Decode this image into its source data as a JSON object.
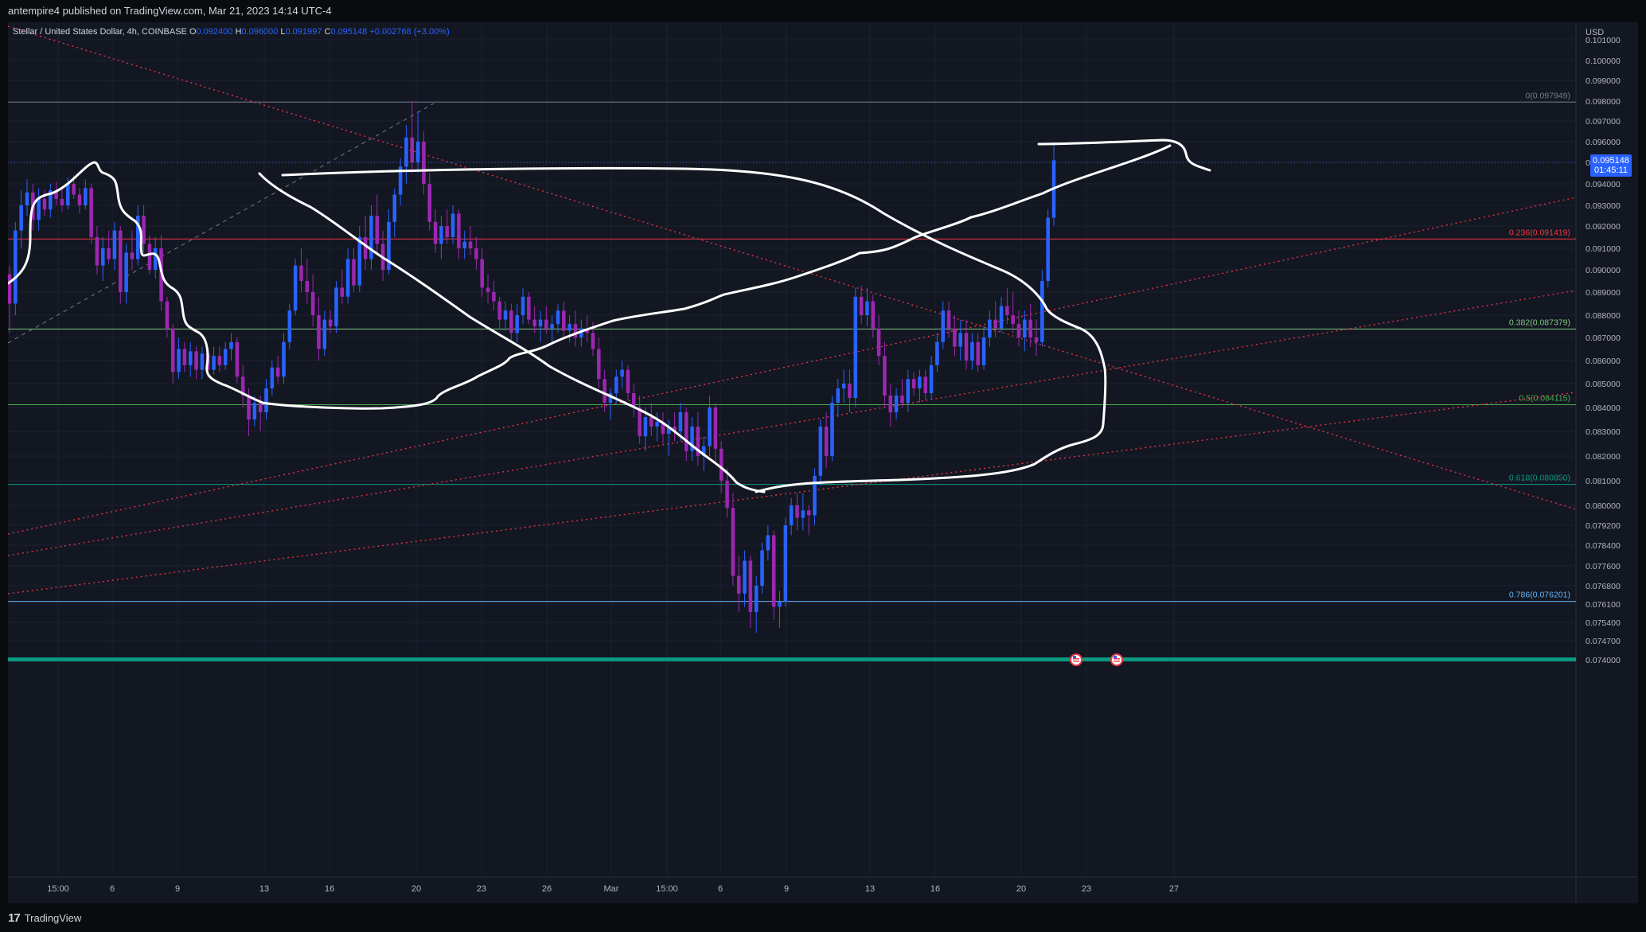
{
  "header": {
    "text": "antempire4 published on TradingView.com, Mar 21, 2023 14:14 UTC-4"
  },
  "legend": {
    "symbol": "Stellar / United States Dollar, 4h, COINBASE",
    "o_label": "O",
    "o": "0.092400",
    "h_label": "H",
    "h": "0.096000",
    "l_label": "L",
    "l": "0.091997",
    "c_label": "C",
    "c": "0.095148",
    "change": "+0.002768 (+3.00%)"
  },
  "price_tag": {
    "price": "0.095148",
    "countdown": "01:45:11"
  },
  "footer": {
    "logo_mark": "17",
    "logo_text": "TradingView"
  },
  "chart_data": {
    "type": "candlestick",
    "currency_label": "USD",
    "y_ticks": [
      "0.101000",
      "0.100000",
      "0.099000",
      "0.098000",
      "0.097000",
      "0.096000",
      "0.095000",
      "0.094000",
      "0.093000",
      "0.092000",
      "0.091000",
      "0.090000",
      "0.089000",
      "0.088000",
      "0.087000",
      "0.086000",
      "0.085000",
      "0.084000",
      "0.083000",
      "0.082000",
      "0.081000",
      "0.080000",
      "0.079200",
      "0.078400",
      "0.077600",
      "0.076800",
      "0.076100",
      "0.075400",
      "0.074700",
      "0.074000"
    ],
    "x_ticks": [
      "15:00",
      "6",
      "9",
      "13",
      "16",
      "20",
      "23",
      "26",
      "Mar",
      "15:00",
      "6",
      "9",
      "13",
      "16",
      "20",
      "23",
      "27"
    ],
    "fib_levels": [
      {
        "label": "0(0.097949)",
        "value": 0.097949,
        "color": "#787b86"
      },
      {
        "label": "0.236(0.091419)",
        "value": 0.091419,
        "color": "#f23645"
      },
      {
        "label": "0.382(0.087379)",
        "value": 0.087379,
        "color": "#81c784"
      },
      {
        "label": "0.5(0.084115)",
        "value": 0.084115,
        "color": "#4caf50"
      },
      {
        "label": "0.618(0.080850)",
        "value": 0.08085,
        "color": "#089981"
      },
      {
        "label": "0.786(0.076201)",
        "value": 0.076201,
        "color": "#64b5f6"
      }
    ],
    "baseline_value": 0.074,
    "candles": [
      [
        0.0898,
        0.0902,
        0.0872,
        0.0885
      ],
      [
        0.0885,
        0.0922,
        0.088,
        0.0918
      ],
      [
        0.0918,
        0.0937,
        0.091,
        0.093
      ],
      [
        0.093,
        0.0942,
        0.0925,
        0.0936
      ],
      [
        0.0936,
        0.094,
        0.0918,
        0.0923
      ],
      [
        0.0923,
        0.0938,
        0.0918,
        0.0933
      ],
      [
        0.0933,
        0.0937,
        0.0925,
        0.0928
      ],
      [
        0.0928,
        0.094,
        0.0924,
        0.0937
      ],
      [
        0.0937,
        0.0941,
        0.093,
        0.0933
      ],
      [
        0.0933,
        0.0938,
        0.0927,
        0.093
      ],
      [
        0.093,
        0.0943,
        0.0928,
        0.094
      ],
      [
        0.094,
        0.0944,
        0.0933,
        0.0935
      ],
      [
        0.0935,
        0.0938,
        0.0926,
        0.093
      ],
      [
        0.093,
        0.0942,
        0.0928,
        0.0938
      ],
      [
        0.0938,
        0.094,
        0.0912,
        0.0915
      ],
      [
        0.0915,
        0.092,
        0.0898,
        0.0902
      ],
      [
        0.0902,
        0.0915,
        0.0895,
        0.091
      ],
      [
        0.091,
        0.0918,
        0.0903,
        0.0905
      ],
      [
        0.0905,
        0.0922,
        0.09,
        0.0918
      ],
      [
        0.0918,
        0.092,
        0.0885,
        0.089
      ],
      [
        0.089,
        0.0912,
        0.0885,
        0.0908
      ],
      [
        0.0908,
        0.0918,
        0.09,
        0.0905
      ],
      [
        0.0905,
        0.093,
        0.0902,
        0.0925
      ],
      [
        0.0925,
        0.093,
        0.0908,
        0.0912
      ],
      [
        0.0912,
        0.0916,
        0.0898,
        0.09
      ],
      [
        0.09,
        0.0915,
        0.0896,
        0.091
      ],
      [
        0.091,
        0.0916,
        0.0882,
        0.0886
      ],
      [
        0.0886,
        0.0888,
        0.087,
        0.0874
      ],
      [
        0.0874,
        0.0876,
        0.085,
        0.0855
      ],
      [
        0.0855,
        0.087,
        0.0852,
        0.0865
      ],
      [
        0.0865,
        0.0868,
        0.0855,
        0.0858
      ],
      [
        0.0858,
        0.0868,
        0.0853,
        0.0864
      ],
      [
        0.0864,
        0.0866,
        0.0852,
        0.0856
      ],
      [
        0.0856,
        0.0866,
        0.0852,
        0.0863
      ],
      [
        0.0863,
        0.0865,
        0.0853,
        0.0856
      ],
      [
        0.0856,
        0.0866,
        0.0854,
        0.0862
      ],
      [
        0.0862,
        0.0866,
        0.0855,
        0.0858
      ],
      [
        0.0858,
        0.0868,
        0.0856,
        0.0865
      ],
      [
        0.0865,
        0.0872,
        0.086,
        0.0868
      ],
      [
        0.0868,
        0.087,
        0.085,
        0.0853
      ],
      [
        0.0853,
        0.0858,
        0.084,
        0.0845
      ],
      [
        0.0845,
        0.0848,
        0.0828,
        0.0835
      ],
      [
        0.0835,
        0.0845,
        0.0832,
        0.0842
      ],
      [
        0.0842,
        0.0845,
        0.083,
        0.0838
      ],
      [
        0.0838,
        0.0852,
        0.0835,
        0.0848
      ],
      [
        0.0848,
        0.086,
        0.0845,
        0.0857
      ],
      [
        0.0857,
        0.0862,
        0.085,
        0.0853
      ],
      [
        0.0853,
        0.0872,
        0.085,
        0.0868
      ],
      [
        0.0868,
        0.0885,
        0.0865,
        0.0882
      ],
      [
        0.0882,
        0.0905,
        0.088,
        0.0902
      ],
      [
        0.0902,
        0.091,
        0.089,
        0.0895
      ],
      [
        0.0895,
        0.0905,
        0.0885,
        0.089
      ],
      [
        0.089,
        0.0898,
        0.0875,
        0.088
      ],
      [
        0.088,
        0.0888,
        0.086,
        0.0865
      ],
      [
        0.0865,
        0.0882,
        0.0862,
        0.0878
      ],
      [
        0.0878,
        0.0882,
        0.0872,
        0.0875
      ],
      [
        0.0875,
        0.0895,
        0.0872,
        0.0892
      ],
      [
        0.0892,
        0.09,
        0.0885,
        0.0888
      ],
      [
        0.0888,
        0.091,
        0.0885,
        0.0905
      ],
      [
        0.0905,
        0.091,
        0.089,
        0.0893
      ],
      [
        0.0893,
        0.092,
        0.089,
        0.0915
      ],
      [
        0.0915,
        0.0925,
        0.09,
        0.0905
      ],
      [
        0.0905,
        0.093,
        0.09,
        0.0925
      ],
      [
        0.0925,
        0.0935,
        0.0908,
        0.0912
      ],
      [
        0.0912,
        0.0918,
        0.0895,
        0.09
      ],
      [
        0.09,
        0.0928,
        0.0898,
        0.0922
      ],
      [
        0.0922,
        0.0938,
        0.0915,
        0.0935
      ],
      [
        0.0935,
        0.0952,
        0.093,
        0.0948
      ],
      [
        0.0948,
        0.0968,
        0.094,
        0.0962
      ],
      [
        0.0962,
        0.098,
        0.0945,
        0.095
      ],
      [
        0.095,
        0.0975,
        0.0945,
        0.096
      ],
      [
        0.096,
        0.0965,
        0.0935,
        0.094
      ],
      [
        0.094,
        0.0945,
        0.0918,
        0.0922
      ],
      [
        0.0922,
        0.0928,
        0.0908,
        0.0912
      ],
      [
        0.0912,
        0.0925,
        0.0905,
        0.092
      ],
      [
        0.092,
        0.0928,
        0.0912,
        0.0915
      ],
      [
        0.0915,
        0.093,
        0.0912,
        0.0926
      ],
      [
        0.0926,
        0.0928,
        0.0905,
        0.091
      ],
      [
        0.091,
        0.0918,
        0.0905,
        0.0913
      ],
      [
        0.0913,
        0.092,
        0.0907,
        0.091
      ],
      [
        0.091,
        0.0915,
        0.09,
        0.0905
      ],
      [
        0.0905,
        0.091,
        0.0888,
        0.0892
      ],
      [
        0.0892,
        0.0898,
        0.0885,
        0.089
      ],
      [
        0.089,
        0.0895,
        0.0882,
        0.0886
      ],
      [
        0.0886,
        0.0888,
        0.0874,
        0.0878
      ],
      [
        0.0878,
        0.0886,
        0.0873,
        0.0882
      ],
      [
        0.0882,
        0.0885,
        0.0868,
        0.0872
      ],
      [
        0.0872,
        0.0885,
        0.0868,
        0.088
      ],
      [
        0.088,
        0.0892,
        0.0876,
        0.0888
      ],
      [
        0.0888,
        0.089,
        0.0876,
        0.0878
      ],
      [
        0.0878,
        0.0884,
        0.0872,
        0.0875
      ],
      [
        0.0875,
        0.0882,
        0.0868,
        0.0878
      ],
      [
        0.0878,
        0.0884,
        0.0872,
        0.0874
      ],
      [
        0.0874,
        0.088,
        0.0868,
        0.0876
      ],
      [
        0.0876,
        0.0885,
        0.0872,
        0.0882
      ],
      [
        0.0882,
        0.0886,
        0.087,
        0.0873
      ],
      [
        0.0873,
        0.088,
        0.0868,
        0.0876
      ],
      [
        0.0876,
        0.0882,
        0.0866,
        0.087
      ],
      [
        0.087,
        0.0878,
        0.0866,
        0.0874
      ],
      [
        0.0874,
        0.088,
        0.0868,
        0.0872
      ],
      [
        0.0872,
        0.0877,
        0.0862,
        0.0865
      ],
      [
        0.0865,
        0.087,
        0.0848,
        0.0852
      ],
      [
        0.0852,
        0.0856,
        0.0838,
        0.0842
      ],
      [
        0.0842,
        0.0848,
        0.0835,
        0.0846
      ],
      [
        0.0846,
        0.0856,
        0.0842,
        0.0853
      ],
      [
        0.0853,
        0.086,
        0.0848,
        0.0856
      ],
      [
        0.0856,
        0.0858,
        0.0843,
        0.0846
      ],
      [
        0.0846,
        0.085,
        0.0836,
        0.084
      ],
      [
        0.084,
        0.0845,
        0.0825,
        0.0828
      ],
      [
        0.0828,
        0.084,
        0.0822,
        0.0836
      ],
      [
        0.0836,
        0.0842,
        0.0828,
        0.0832
      ],
      [
        0.0832,
        0.0838,
        0.0826,
        0.0834
      ],
      [
        0.0834,
        0.0838,
        0.0825,
        0.0829
      ],
      [
        0.0829,
        0.0835,
        0.082,
        0.0832
      ],
      [
        0.0832,
        0.0838,
        0.0826,
        0.083
      ],
      [
        0.083,
        0.0842,
        0.0826,
        0.0838
      ],
      [
        0.0838,
        0.084,
        0.0818,
        0.0822
      ],
      [
        0.0822,
        0.0836,
        0.0818,
        0.0832
      ],
      [
        0.0832,
        0.0838,
        0.0816,
        0.082
      ],
      [
        0.082,
        0.0828,
        0.0814,
        0.0824
      ],
      [
        0.0824,
        0.0845,
        0.082,
        0.084
      ],
      [
        0.084,
        0.0842,
        0.0818,
        0.0823
      ],
      [
        0.0823,
        0.0826,
        0.0805,
        0.081
      ],
      [
        0.081,
        0.0815,
        0.0795,
        0.0799
      ],
      [
        0.0799,
        0.0805,
        0.0768,
        0.0772
      ],
      [
        0.0772,
        0.078,
        0.0758,
        0.0765
      ],
      [
        0.0765,
        0.0782,
        0.076,
        0.0778
      ],
      [
        0.0778,
        0.078,
        0.0752,
        0.0758
      ],
      [
        0.0758,
        0.0772,
        0.075,
        0.0768
      ],
      [
        0.0768,
        0.0785,
        0.0765,
        0.0782
      ],
      [
        0.0782,
        0.0792,
        0.0778,
        0.0788
      ],
      [
        0.0788,
        0.079,
        0.0755,
        0.076
      ],
      [
        0.076,
        0.0766,
        0.0752,
        0.0762
      ],
      [
        0.0762,
        0.0795,
        0.076,
        0.0792
      ],
      [
        0.0792,
        0.0803,
        0.0788,
        0.08
      ],
      [
        0.08,
        0.0805,
        0.079,
        0.0795
      ],
      [
        0.0795,
        0.0805,
        0.079,
        0.0798
      ],
      [
        0.0798,
        0.08,
        0.0788,
        0.0796
      ],
      [
        0.0796,
        0.0815,
        0.0792,
        0.0812
      ],
      [
        0.0812,
        0.0835,
        0.0808,
        0.0832
      ],
      [
        0.0832,
        0.0838,
        0.0815,
        0.082
      ],
      [
        0.082,
        0.0845,
        0.0818,
        0.0842
      ],
      [
        0.0842,
        0.0852,
        0.0836,
        0.0848
      ],
      [
        0.0848,
        0.0856,
        0.0842,
        0.085
      ],
      [
        0.085,
        0.0856,
        0.0838,
        0.0844
      ],
      [
        0.0844,
        0.0892,
        0.084,
        0.0888
      ],
      [
        0.0888,
        0.0893,
        0.0876,
        0.088
      ],
      [
        0.088,
        0.0892,
        0.0875,
        0.0886
      ],
      [
        0.0886,
        0.0889,
        0.087,
        0.0874
      ],
      [
        0.0874,
        0.088,
        0.0858,
        0.0862
      ],
      [
        0.0862,
        0.0868,
        0.084,
        0.0845
      ],
      [
        0.0845,
        0.085,
        0.0832,
        0.0838
      ],
      [
        0.0838,
        0.0848,
        0.0835,
        0.0845
      ],
      [
        0.0845,
        0.0852,
        0.084,
        0.0842
      ],
      [
        0.0842,
        0.0856,
        0.0838,
        0.0852
      ],
      [
        0.0852,
        0.0855,
        0.0845,
        0.0848
      ],
      [
        0.0848,
        0.0856,
        0.0842,
        0.0853
      ],
      [
        0.0853,
        0.0856,
        0.0843,
        0.0846
      ],
      [
        0.0846,
        0.0862,
        0.0843,
        0.0858
      ],
      [
        0.0858,
        0.0872,
        0.0855,
        0.0868
      ],
      [
        0.0868,
        0.0886,
        0.0865,
        0.0882
      ],
      [
        0.0882,
        0.0886,
        0.087,
        0.0874
      ],
      [
        0.0874,
        0.088,
        0.0862,
        0.0866
      ],
      [
        0.0866,
        0.0878,
        0.086,
        0.0872
      ],
      [
        0.0872,
        0.0878,
        0.0856,
        0.086
      ],
      [
        0.086,
        0.0872,
        0.0856,
        0.0868
      ],
      [
        0.0868,
        0.0872,
        0.0855,
        0.0858
      ],
      [
        0.0858,
        0.0875,
        0.0856,
        0.087
      ],
      [
        0.087,
        0.0882,
        0.0866,
        0.0878
      ],
      [
        0.0878,
        0.0886,
        0.087,
        0.0874
      ],
      [
        0.0874,
        0.0888,
        0.0872,
        0.0884
      ],
      [
        0.0884,
        0.0892,
        0.0876,
        0.088
      ],
      [
        0.088,
        0.089,
        0.0872,
        0.0876
      ],
      [
        0.0876,
        0.0882,
        0.0866,
        0.087
      ],
      [
        0.087,
        0.0882,
        0.0864,
        0.0878
      ],
      [
        0.0878,
        0.0885,
        0.0866,
        0.087
      ],
      [
        0.087,
        0.0878,
        0.0862,
        0.0868
      ],
      [
        0.0868,
        0.09,
        0.0866,
        0.0895
      ],
      [
        0.0895,
        0.0928,
        0.0892,
        0.0924
      ],
      [
        0.0924,
        0.096,
        0.092,
        0.0951
      ]
    ]
  }
}
